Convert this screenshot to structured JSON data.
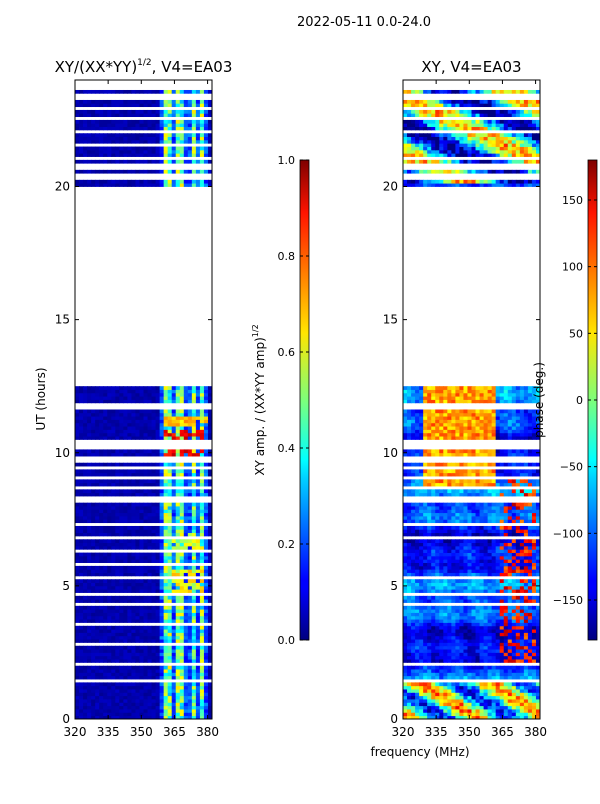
{
  "figure": {
    "suptitle": "2022-05-11 0.0-24.0",
    "xlabel": "frequency (MHz)"
  },
  "chart_data": [
    {
      "type": "heatmap",
      "title": "XY/(XX*YY)",
      "title_exp": "1/2",
      "title_tail": ", V4=EA03",
      "ylabel": "UT (hours)",
      "xlim": [
        320,
        382
      ],
      "ylim": [
        0,
        24
      ],
      "xticks": [
        320,
        335,
        350,
        365,
        380
      ],
      "yticks": [
        0,
        5,
        10,
        15,
        20
      ],
      "data_blocks_hours": [
        [
          0.0,
          12.4
        ],
        [
          20.0,
          23.6
        ]
      ],
      "gap_rows_hours": [
        1.4,
        2.0,
        2.8,
        3.5,
        4.3,
        4.6,
        5.2,
        5.7,
        6.2,
        6.8,
        7.3,
        8.2,
        8.6,
        9.0,
        9.4,
        9.7,
        10.1,
        10.3,
        11.7,
        20.3,
        20.7,
        21.0,
        21.5,
        22.0,
        22.5,
        22.9,
        23.3
      ],
      "bright_freq_bands_mhz": [
        [
          360,
          364
        ],
        [
          366,
          370
        ],
        [
          372,
          375
        ],
        [
          376,
          379
        ]
      ],
      "hot_patches": [
        {
          "t": [
            9.7,
            10.8
          ],
          "f": [
            361,
            379
          ],
          "value": 0.95
        },
        {
          "t": [
            4.7,
            5.6
          ],
          "f": [
            363,
            378
          ],
          "value": 0.7
        },
        {
          "t": [
            6.3,
            6.9
          ],
          "f": [
            363,
            378
          ],
          "value": 0.65
        },
        {
          "t": [
            11.0,
            11.3
          ],
          "f": [
            360,
            380
          ],
          "value": 0.75
        }
      ]
    },
    {
      "type": "colorbar",
      "label": "XY amp. / (XX*YY amp)",
      "label_exp": "1/2",
      "range": [
        0.0,
        1.0
      ],
      "ticks": [
        "0.0",
        "0.2",
        "0.4",
        "0.6",
        "0.8",
        "1.0"
      ],
      "tick_values": [
        0.0,
        0.2,
        0.4,
        0.6,
        0.8,
        1.0
      ]
    },
    {
      "type": "heatmap",
      "title": "XY, V4=EA03",
      "xlim": [
        320,
        382
      ],
      "ylim": [
        0,
        24
      ],
      "xticks": [
        320,
        335,
        350,
        365,
        380
      ],
      "yticks": [
        0,
        5,
        10,
        15,
        20
      ],
      "data_blocks_hours": [
        [
          0.0,
          12.4
        ],
        [
          20.0,
          23.6
        ]
      ],
      "gap_rows_hours": [
        1.4,
        2.0,
        4.3,
        4.6,
        5.2,
        6.8,
        7.3,
        8.2,
        8.6,
        9.0,
        9.4,
        9.7,
        10.1,
        10.3,
        11.7,
        20.3,
        20.7,
        21.0,
        22.0,
        22.5,
        22.9,
        23.3
      ],
      "phase_range_deg": [
        -180,
        180
      ]
    },
    {
      "type": "colorbar",
      "label": "phase (deg.)",
      "range": [
        -180,
        180
      ],
      "ticks": [
        "150",
        "100",
        "50",
        "0",
        "−50",
        "−100",
        "−150"
      ],
      "tick_values": [
        150,
        100,
        50,
        0,
        -50,
        -100,
        -150
      ]
    }
  ]
}
